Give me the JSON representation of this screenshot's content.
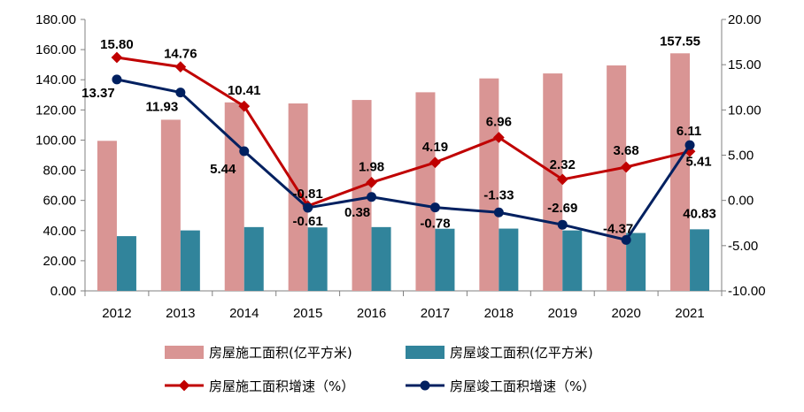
{
  "chart_data": {
    "type": "bar",
    "categories": [
      "2012",
      "2013",
      "2014",
      "2015",
      "2016",
      "2017",
      "2018",
      "2019",
      "2020",
      "2021"
    ],
    "series": [
      {
        "name": "房屋施工面积(亿平方米)",
        "kind": "bar",
        "axis": "left",
        "color": "#D99594",
        "values": [
          99.5,
          113.5,
          125.0,
          124.3,
          126.6,
          131.7,
          140.9,
          144.2,
          149.5,
          157.55
        ]
      },
      {
        "name": "房屋竣工面积(亿平方米)",
        "kind": "bar",
        "axis": "left",
        "color": "#31849B",
        "values": [
          36.3,
          40.1,
          42.3,
          42.1,
          42.3,
          41.2,
          41.3,
          40.1,
          38.4,
          40.83
        ]
      },
      {
        "name": "房屋施工面积增速（%）",
        "kind": "line",
        "axis": "right",
        "color": "#C00000",
        "values": [
          15.8,
          14.76,
          10.41,
          -0.61,
          1.98,
          4.19,
          6.96,
          2.32,
          3.68,
          5.41
        ]
      },
      {
        "name": "房屋竣工面积增速（%）",
        "kind": "line",
        "axis": "right",
        "color": "#002060",
        "values": [
          13.37,
          11.93,
          5.44,
          -0.81,
          0.38,
          -0.78,
          -1.33,
          -2.69,
          -4.37,
          6.11
        ]
      }
    ],
    "data_labels": [
      {
        "text": "15.80"
      },
      {
        "text": "14.76"
      },
      {
        "text": "10.41"
      },
      {
        "text": "-0.61"
      },
      {
        "text": "1.98"
      },
      {
        "text": "4.19"
      },
      {
        "text": "6.96"
      },
      {
        "text": "2.32"
      },
      {
        "text": "3.68"
      },
      {
        "text": "5.41"
      },
      {
        "text": "13.37"
      },
      {
        "text": "11.93"
      },
      {
        "text": "5.44"
      },
      {
        "text": "-0.81"
      },
      {
        "text": "0.38"
      },
      {
        "text": "-0.78"
      },
      {
        "text": "-1.33"
      },
      {
        "text": "-2.69"
      },
      {
        "text": "-4.37"
      },
      {
        "text": "6.11"
      },
      {
        "text": "157.55"
      },
      {
        "text": "40.83"
      }
    ],
    "y_left_ticks": [
      "0.00",
      "20.00",
      "40.00",
      "60.00",
      "80.00",
      "100.00",
      "120.00",
      "140.00",
      "160.00",
      "180.00"
    ],
    "y_right_ticks": [
      "-10.00",
      "-5.00",
      "0.00",
      "5.00",
      "10.00",
      "15.00",
      "20.00"
    ],
    "ylim_left": [
      0,
      180
    ],
    "ylim_right": [
      -10,
      20
    ],
    "grid": false,
    "legend_position": "bottom",
    "title": "",
    "xlabel": "",
    "ylabel": ""
  }
}
